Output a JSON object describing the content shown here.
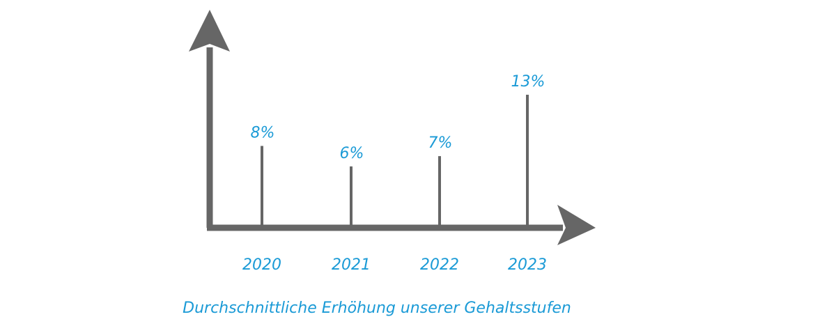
{
  "chart_data": {
    "type": "bar",
    "categories": [
      "2020",
      "2021",
      "2022",
      "2023"
    ],
    "values": [
      8,
      6,
      7,
      13
    ],
    "value_labels": [
      "8%",
      "6%",
      "7%",
      "13%"
    ],
    "title": "",
    "caption": "Durchschnittliche Erhöhung unserer Gehaltsstufen",
    "xlabel": "",
    "ylabel": "",
    "unit": "%",
    "ylim": [
      0,
      13
    ],
    "grid": false,
    "legend": "none",
    "colors": {
      "axis": "#666666",
      "bar": "#666666",
      "label": "#1a9ad6"
    }
  }
}
